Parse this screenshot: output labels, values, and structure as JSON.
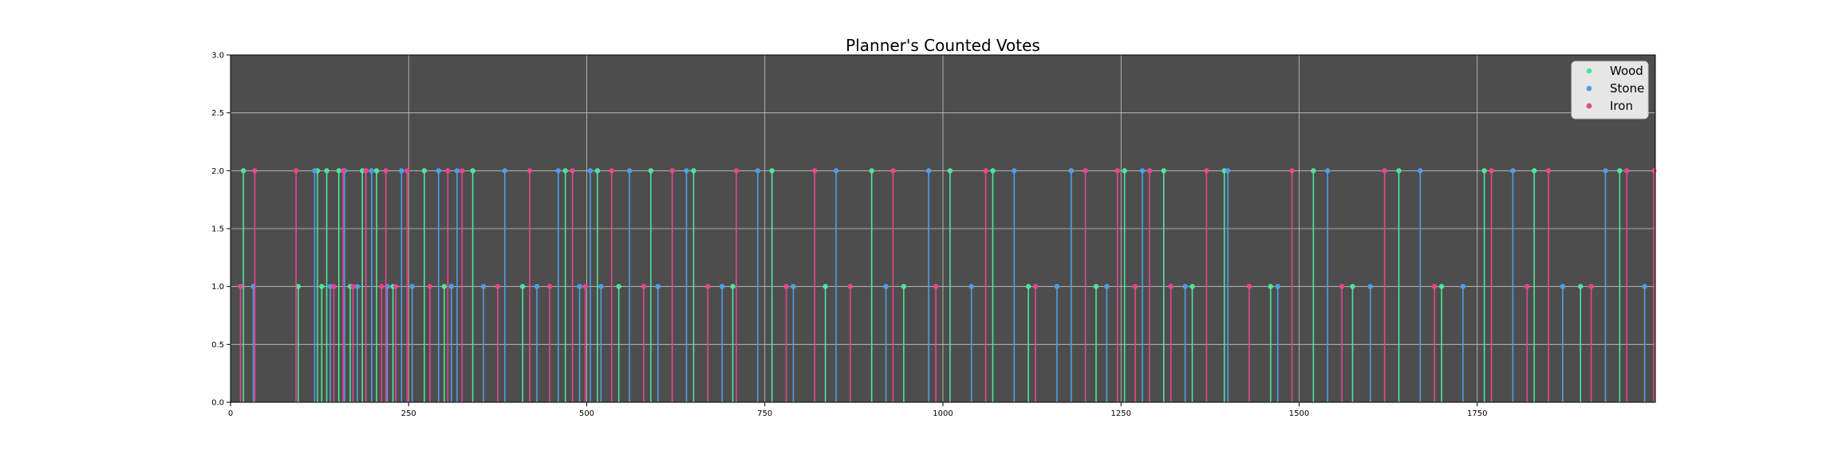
{
  "chart_data": {
    "type": "line",
    "title": "Planner's Counted Votes",
    "xlabel": "",
    "ylabel": "",
    "xlim": [
      0,
      2000
    ],
    "ylim": [
      0,
      3
    ],
    "x_ticks": [
      0,
      250,
      500,
      750,
      1000,
      1250,
      1500,
      1750
    ],
    "y_ticks": [
      0.0,
      0.5,
      1.0,
      1.5,
      2.0,
      2.5,
      3.0
    ],
    "y_tick_labels": [
      "0.0",
      "0.5",
      "1.0",
      "1.5",
      "2.0",
      "2.5",
      "3.0"
    ],
    "grid": true,
    "legend_position": "top-right",
    "background_color": "#4d4d4d",
    "marker": "circle",
    "series": [
      {
        "name": "Wood",
        "color": "#4ee59a",
        "x": [
          18,
          95,
          122,
          128,
          135,
          152,
          168,
          185,
          205,
          228,
          272,
          300,
          340,
          410,
          470,
          515,
          545,
          590,
          650,
          705,
          760,
          835,
          900,
          945,
          1010,
          1070,
          1120,
          1180,
          1215,
          1255,
          1310,
          1350,
          1395,
          1460,
          1520,
          1575,
          1640,
          1700,
          1760,
          1830,
          1895,
          1950
        ],
        "y": [
          2,
          1,
          2,
          1,
          2,
          2,
          1,
          2,
          2,
          1,
          2,
          1,
          2,
          1,
          2,
          2,
          1,
          2,
          2,
          1,
          2,
          1,
          2,
          1,
          2,
          2,
          1,
          2,
          1,
          2,
          2,
          1,
          2,
          1,
          2,
          1,
          2,
          1,
          2,
          2,
          1,
          2
        ]
      },
      {
        "name": "Stone",
        "color": "#4f9de8",
        "x": [
          32,
          118,
          140,
          160,
          178,
          198,
          220,
          240,
          255,
          292,
          310,
          318,
          355,
          385,
          430,
          460,
          490,
          505,
          520,
          560,
          600,
          640,
          690,
          740,
          790,
          850,
          920,
          980,
          1040,
          1100,
          1160,
          1180,
          1230,
          1280,
          1340,
          1400,
          1470,
          1540,
          1600,
          1670,
          1730,
          1800,
          1870,
          1930,
          1985
        ],
        "y": [
          1,
          2,
          1,
          2,
          1,
          2,
          1,
          2,
          1,
          2,
          1,
          2,
          1,
          2,
          1,
          2,
          1,
          2,
          1,
          2,
          1,
          2,
          1,
          2,
          1,
          2,
          1,
          2,
          1,
          2,
          1,
          2,
          1,
          2,
          1,
          2,
          1,
          2,
          1,
          2,
          1,
          2,
          1,
          2,
          1
        ]
      },
      {
        "name": "Iron",
        "color": "#e8468f",
        "x": [
          14,
          34,
          92,
          145,
          158,
          172,
          190,
          212,
          218,
          232,
          248,
          280,
          305,
          325,
          375,
          420,
          448,
          480,
          498,
          535,
          580,
          620,
          670,
          710,
          780,
          820,
          870,
          930,
          990,
          1060,
          1130,
          1200,
          1245,
          1270,
          1290,
          1320,
          1370,
          1430,
          1490,
          1560,
          1620,
          1690,
          1770,
          1820,
          1850,
          1910,
          1960,
          1998
        ],
        "y": [
          1,
          2,
          2,
          1,
          2,
          1,
          2,
          1,
          2,
          1,
          2,
          1,
          2,
          2,
          1,
          2,
          1,
          2,
          1,
          2,
          1,
          2,
          1,
          2,
          1,
          2,
          1,
          2,
          1,
          2,
          1,
          2,
          2,
          1,
          2,
          1,
          2,
          1,
          2,
          1,
          2,
          1,
          2,
          1,
          2,
          1,
          2,
          2
        ]
      }
    ]
  }
}
